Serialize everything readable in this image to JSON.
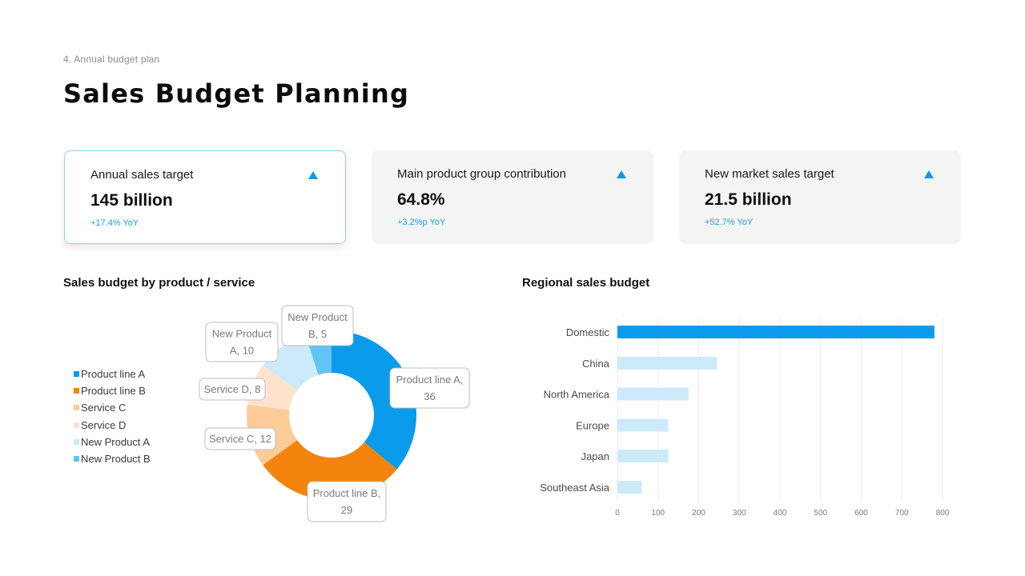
{
  "header": {
    "eyebrow": "4. Annual budget plan",
    "title": "Sales Budget Planning"
  },
  "kpis": [
    {
      "label": "Annual sales target",
      "value": "145 billion",
      "change": "+17.4% YoY"
    },
    {
      "label": "Main product group contribution",
      "value": "64.8%",
      "change": "+3.2%p YoY"
    },
    {
      "label": "New market sales target",
      "value": "21.5 billion",
      "change": "+52.7% YoY"
    }
  ],
  "colors": {
    "accent": "#0c9bec",
    "product_line_a": "#0a9bea",
    "product_line_b": "#f5840e",
    "service_c": "#fdcb98",
    "service_d": "#fde3cd",
    "new_product_a": "#cdeafb",
    "new_product_b": "#62c4f5",
    "bar_highlight": "#0c9bec",
    "bar_default": "#cdeafb"
  },
  "chart_data": [
    {
      "type": "pie",
      "donut": true,
      "title": "Sales budget by product / service",
      "categories": [
        "Product line A",
        "Product line B",
        "Service C",
        "Service D",
        "New Product A",
        "New Product B"
      ],
      "values": [
        36,
        29,
        12,
        8,
        10,
        5
      ],
      "data_labels": [
        [
          "Product line A,",
          "36"
        ],
        [
          "Product line B,",
          "29"
        ],
        [
          "Service C, 12"
        ],
        [
          "Service D, 8"
        ],
        [
          "New Product",
          "A, 10"
        ],
        [
          "New Product",
          "B, 5"
        ]
      ],
      "legend_position": "left"
    },
    {
      "type": "bar",
      "orientation": "horizontal",
      "title": "Regional sales budget",
      "categories": [
        "Domestic",
        "China",
        "North America",
        "Europe",
        "Japan",
        "Southeast Asia"
      ],
      "values": [
        780,
        245,
        175,
        125,
        125,
        60
      ],
      "xlim": [
        0,
        800
      ],
      "x_ticks": [
        0,
        100,
        200,
        300,
        400,
        500,
        600,
        700,
        800
      ],
      "grid": "vertical"
    }
  ]
}
